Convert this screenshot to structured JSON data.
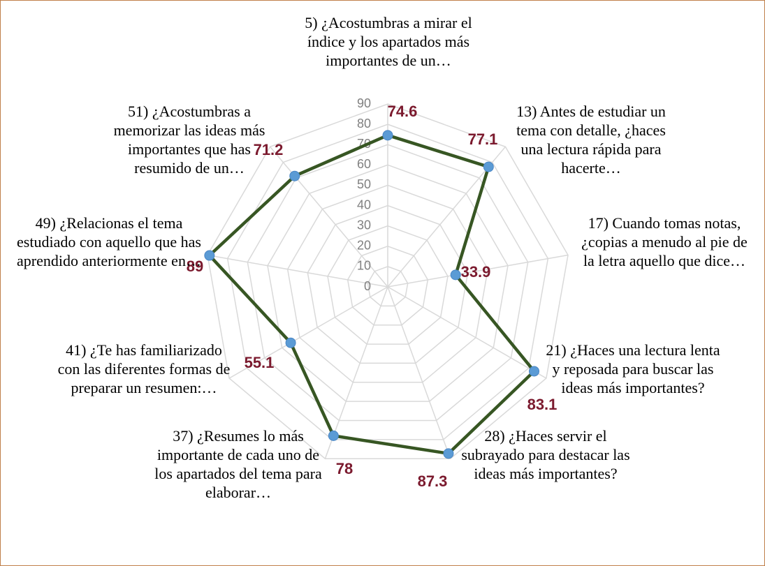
{
  "chart_data": {
    "type": "radar",
    "categories": [
      "5) ¿Acostumbras a mirar el índice y los apartados más importantes de un…",
      "13) Antes de estudiar un tema con detalle, ¿haces una lectura rápida para hacerte…",
      "17) Cuando tomas notas, ¿copias a menudo al pie de la letra aquello que dice…",
      "21) ¿Haces una lectura lenta y reposada para buscar las ideas más importantes?",
      "28) ¿Haces servir el subrayado para destacar las ideas más importantes?",
      "37) ¿Resumes lo más importante de cada uno de los apartados del tema para elaborar…",
      "41) ¿Te has familiarizado con las diferentes formas de preparar un resumen:…",
      "49) ¿Relacionas el tema estudiado con aquello que has aprendido anteriormente en…",
      "51) ¿Acostumbras a memorizar las ideas más importantes que has resumido de un…"
    ],
    "values": [
      74.6,
      77.1,
      33.9,
      83.1,
      87.3,
      78,
      55.1,
      89,
      71.2
    ],
    "color": "#375623",
    "marker_color": "#5b9bd5",
    "rlim": [
      0,
      90
    ],
    "rticks": [
      0,
      10,
      20,
      30,
      40,
      50,
      60,
      70,
      80,
      90
    ],
    "grid": true
  }
}
